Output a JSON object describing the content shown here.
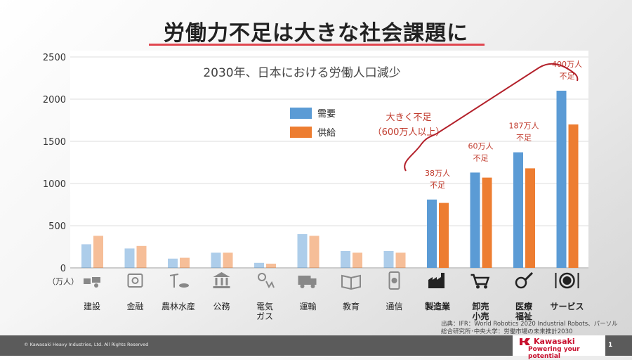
{
  "title": "労働力不足は大きな社会課題に",
  "chart_data": {
    "type": "bar",
    "title": "2030年、日本における労働人口減少",
    "unit_label": "（万人）",
    "ylim": [
      0,
      2500
    ],
    "yticks": [
      0,
      500,
      1000,
      1500,
      2000,
      2500
    ],
    "categories": [
      "建設",
      "金融",
      "農林水産",
      "公務",
      "電気\nガス",
      "運輸",
      "教育",
      "通信",
      "製造業",
      "卸売\n小売",
      "医療\n福祉",
      "サービス"
    ],
    "highlight_from_index": 8,
    "series": [
      {
        "name": "需要",
        "color": "#5b9bd5",
        "values": [
          280,
          230,
          110,
          180,
          60,
          400,
          200,
          200,
          810,
          1130,
          1370,
          2100
        ]
      },
      {
        "name": "供給",
        "color": "#ed7d31",
        "values": [
          380,
          260,
          120,
          180,
          50,
          380,
          180,
          180,
          770,
          1070,
          1180,
          1700
        ]
      }
    ],
    "annotations": [
      {
        "index": 8,
        "lines": [
          "38万人",
          "不足"
        ]
      },
      {
        "index": 9,
        "lines": [
          "60万人",
          "不足"
        ]
      },
      {
        "index": 10,
        "lines": [
          "187万人",
          "不足"
        ]
      },
      {
        "index": 11,
        "lines": [
          "400万人",
          "不足"
        ]
      }
    ],
    "callout": [
      "大きく不足",
      "（600万人以上）"
    ]
  },
  "icons": [
    "construction-icon",
    "safe-icon",
    "farming-fishing-icon",
    "government-building-icon",
    "utility-icon",
    "truck-icon",
    "book-icon",
    "smartphone-icon",
    "factory-icon",
    "shopping-cart-icon",
    "medical-icon",
    "dining-icon"
  ],
  "source": "出典：IFR：World Robotics 2020 Industrial Robots、パーソル総合研究所･中央大学：労働市場の未来推計2030",
  "footer": {
    "copyright": "© Kawasaki Heavy Industries, Ltd. All Rights Reserved",
    "logo_text": "Kawasaki",
    "tagline": "Powering your potential",
    "page_number": "1"
  }
}
